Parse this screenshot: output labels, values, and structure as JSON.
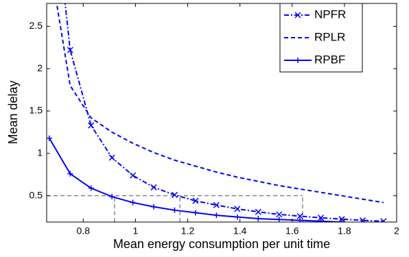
{
  "chart_data": {
    "type": "line",
    "xlabel": "Mean energy consumption per unit time",
    "ylabel": "Mean delay",
    "x": [
      0.67,
      0.75,
      0.83,
      0.91,
      0.99,
      1.07,
      1.15,
      1.23,
      1.31,
      1.39,
      1.47,
      1.55,
      1.63,
      1.71,
      1.79,
      1.87,
      1.95
    ],
    "series": [
      {
        "name": "NPFR",
        "color": "#0000ff",
        "dash": "dashdot",
        "marker": "x",
        "values": [
          4.5,
          2.22,
          1.33,
          0.95,
          0.74,
          0.6,
          0.51,
          0.44,
          0.39,
          0.345,
          0.31,
          0.28,
          0.26,
          0.24,
          0.225,
          0.21,
          0.2
        ]
      },
      {
        "name": "RPLR",
        "color": "#0000ff",
        "dash": "dashed",
        "marker": "none",
        "values": [
          3.3,
          1.8,
          1.42,
          1.25,
          1.12,
          1.01,
          0.92,
          0.85,
          0.78,
          0.72,
          0.67,
          0.62,
          0.58,
          0.54,
          0.5,
          0.46,
          0.42
        ]
      },
      {
        "name": "RPBF",
        "color": "#0000ff",
        "dash": "solid",
        "marker": "+",
        "values": [
          1.18,
          0.76,
          0.59,
          0.49,
          0.42,
          0.37,
          0.33,
          0.3,
          0.27,
          0.25,
          0.23,
          0.22,
          0.21,
          0.2,
          0.19,
          null,
          null
        ]
      }
    ],
    "reference_lines": {
      "y": 0.5,
      "x": [
        0.92,
        1.17,
        1.64
      ],
      "color": "#555555"
    },
    "xlim": [
      0.66,
      2
    ],
    "ylim": [
      0.19,
      2.77
    ],
    "xticks": [
      0.8,
      1,
      1.2,
      1.4,
      1.6,
      1.8,
      2
    ],
    "yticks": [
      0.5,
      1,
      1.5,
      2,
      2.5
    ],
    "legend": "northeast",
    "grid": false
  }
}
